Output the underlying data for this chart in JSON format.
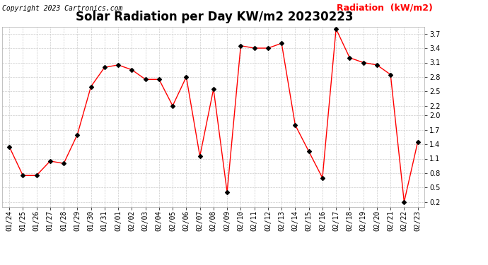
{
  "title": "Solar Radiation per Day KW/m2 20230223",
  "copyright": "Copyright 2023 Cartronics.com",
  "legend_label": "Radiation  (kW/m2)",
  "dates": [
    "01/24",
    "01/25",
    "01/26",
    "01/27",
    "01/28",
    "01/29",
    "01/30",
    "01/31",
    "02/01",
    "02/02",
    "02/03",
    "02/04",
    "02/05",
    "02/06",
    "02/07",
    "02/08",
    "02/09",
    "02/10",
    "02/11",
    "02/12",
    "02/13",
    "02/14",
    "02/15",
    "02/16",
    "02/17",
    "02/18",
    "02/19",
    "02/20",
    "02/21",
    "02/22",
    "02/23"
  ],
  "values": [
    1.35,
    0.75,
    0.75,
    1.05,
    1.0,
    1.6,
    2.6,
    3.0,
    3.05,
    2.95,
    2.75,
    2.75,
    2.2,
    2.8,
    1.15,
    2.55,
    0.4,
    3.45,
    3.4,
    3.4,
    3.5,
    1.8,
    1.25,
    0.7,
    3.8,
    3.2,
    3.1,
    3.05,
    2.85,
    0.2,
    1.45
  ],
  "ylim": [
    0.1,
    3.85
  ],
  "yticks": [
    0.2,
    0.5,
    0.8,
    1.1,
    1.4,
    1.7,
    2.0,
    2.2,
    2.5,
    2.8,
    3.1,
    3.4,
    3.7
  ],
  "line_color": "red",
  "marker_color": "black",
  "background_color": "#ffffff",
  "grid_color": "#cccccc",
  "title_fontsize": 12,
  "copyright_fontsize": 7,
  "legend_fontsize": 9,
  "tick_fontsize": 7
}
